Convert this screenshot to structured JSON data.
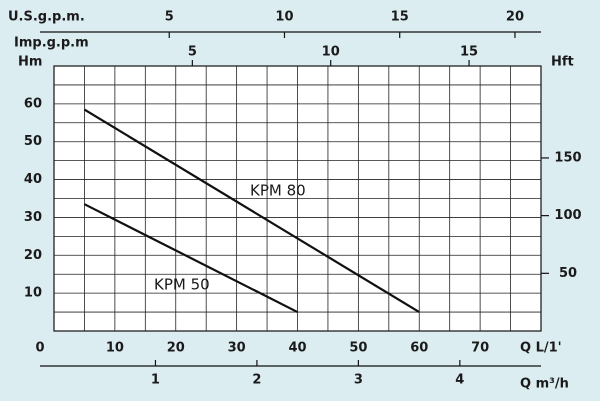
{
  "chart_data": {
    "type": "line",
    "xlabel": "Q  L/1'",
    "ylabel": "Hm",
    "y2label": "Hft",
    "xlim": [
      0,
      80
    ],
    "xticks": [
      0,
      10,
      20,
      30,
      40,
      50,
      60,
      70
    ],
    "ylim": [
      0,
      70
    ],
    "yticks": [
      10,
      20,
      30,
      40,
      50,
      60
    ],
    "y2lim": [
      0,
      229.7
    ],
    "y2ticks": [
      50,
      100,
      150
    ],
    "grid": true,
    "grid_step": [
      5,
      5
    ],
    "extra_x_axes": [
      {
        "label": "U.S.g.p.m.",
        "lim": [
          0,
          21.13
        ],
        "ticks": [
          5,
          10,
          15,
          20
        ],
        "side": "top"
      },
      {
        "label": "Imp.g.p.m",
        "lim": [
          0,
          17.6
        ],
        "ticks": [
          5,
          10,
          15
        ],
        "side": "top"
      },
      {
        "label": "Q  m³/h",
        "lim": [
          0,
          4.8
        ],
        "ticks": [
          1,
          2,
          3,
          4
        ],
        "side": "bottom"
      }
    ],
    "series": [
      {
        "name": "KPM 80",
        "color": "#111111",
        "x": [
          5,
          60
        ],
        "values": [
          58.5,
          5
        ]
      },
      {
        "name": "KPM 50",
        "color": "#111111",
        "x": [
          5,
          40
        ],
        "values": [
          33.5,
          5
        ]
      }
    ]
  }
}
